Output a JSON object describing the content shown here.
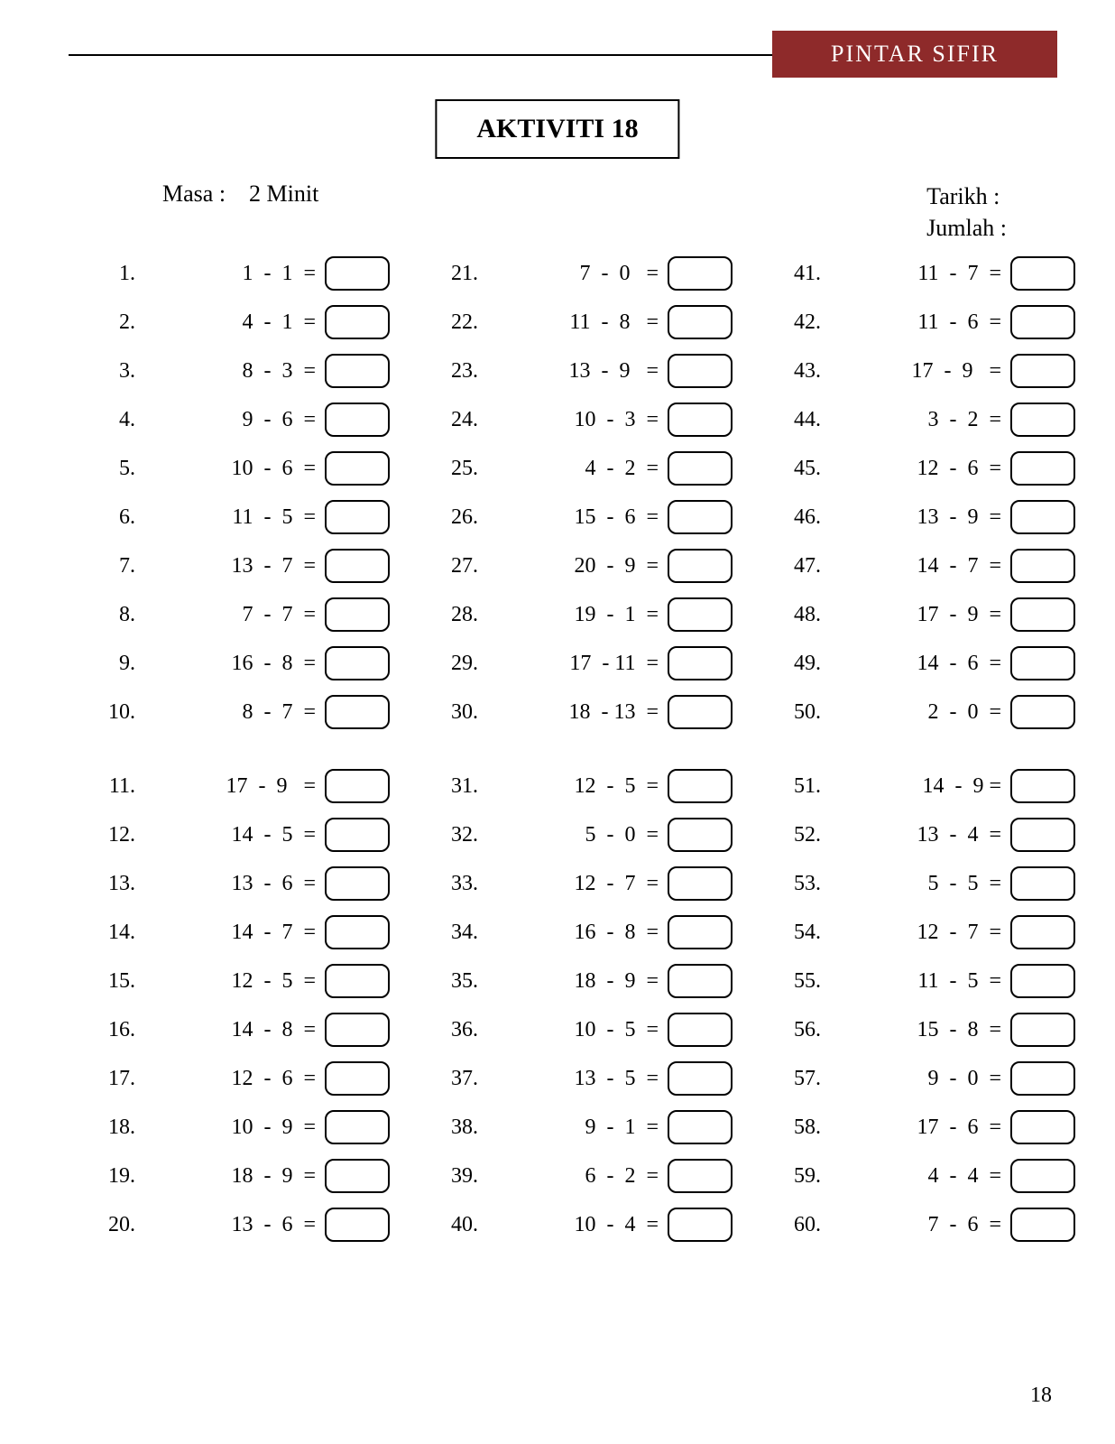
{
  "brand": "PINTAR  SIFIR",
  "title": "AKTIVITI 18",
  "meta": {
    "masa_label": "Masa  :",
    "masa_value": "2 Minit",
    "tarikh_label": "Tarikh  :",
    "jumlah_label": "Jumlah  :"
  },
  "page_number": "18",
  "split_after_index": 10,
  "columns": [
    [
      {
        "n": "1.",
        "e": "1  -  1  ="
      },
      {
        "n": "2.",
        "e": "4  -  1  ="
      },
      {
        "n": "3.",
        "e": "8  -  3  ="
      },
      {
        "n": "4.",
        "e": "9  -  6  ="
      },
      {
        "n": "5.",
        "e": "10  -  6  ="
      },
      {
        "n": "6.",
        "e": "11  -  5  ="
      },
      {
        "n": "7.",
        "e": "13  -  7  ="
      },
      {
        "n": "8.",
        "e": "7  -  7  ="
      },
      {
        "n": "9.",
        "e": "16  -  8  ="
      },
      {
        "n": "10.",
        "e": "8  -  7  ="
      },
      {
        "n": "11.",
        "e": "17  -  9   ="
      },
      {
        "n": "12.",
        "e": "14  -  5  ="
      },
      {
        "n": "13.",
        "e": "13  -  6  ="
      },
      {
        "n": "14.",
        "e": "14  -  7  ="
      },
      {
        "n": "15.",
        "e": "12  -  5  ="
      },
      {
        "n": "16.",
        "e": "14  -  8  ="
      },
      {
        "n": "17.",
        "e": "12  -  6  ="
      },
      {
        "n": "18.",
        "e": "10  -  9  ="
      },
      {
        "n": "19.",
        "e": "18  -  9  ="
      },
      {
        "n": "20.",
        "e": "13  -  6  ="
      }
    ],
    [
      {
        "n": "21.",
        "e": "7  -  0   ="
      },
      {
        "n": "22.",
        "e": "11  -  8   ="
      },
      {
        "n": "23.",
        "e": "13  -  9   ="
      },
      {
        "n": "24.",
        "e": "10  -  3  ="
      },
      {
        "n": "25.",
        "e": "4  -  2  ="
      },
      {
        "n": "26.",
        "e": "15  -  6  ="
      },
      {
        "n": "27.",
        "e": "20  -  9  ="
      },
      {
        "n": "28.",
        "e": "19  -  1  ="
      },
      {
        "n": "29.",
        "e": "17  - 11  ="
      },
      {
        "n": "30.",
        "e": "18  - 13  ="
      },
      {
        "n": "31.",
        "e": "12  -  5  ="
      },
      {
        "n": "32.",
        "e": "5  -  0  ="
      },
      {
        "n": "33.",
        "e": "12  -  7  ="
      },
      {
        "n": "34.",
        "e": "16  -  8  ="
      },
      {
        "n": "35.",
        "e": "18  -  9  ="
      },
      {
        "n": "36.",
        "e": "10  -  5  ="
      },
      {
        "n": "37.",
        "e": "13  -  5  ="
      },
      {
        "n": "38.",
        "e": "9  -  1  ="
      },
      {
        "n": "39.",
        "e": "6  -  2  ="
      },
      {
        "n": "40.",
        "e": "10  -  4  ="
      }
    ],
    [
      {
        "n": "41.",
        "e": "11  -  7  ="
      },
      {
        "n": "42.",
        "e": "11  -  6  ="
      },
      {
        "n": "43.",
        "e": "17  -  9   ="
      },
      {
        "n": "44.",
        "e": "3  -  2  ="
      },
      {
        "n": "45.",
        "e": "12  -  6  ="
      },
      {
        "n": "46.",
        "e": "13  -  9  ="
      },
      {
        "n": "47.",
        "e": "14  -  7  ="
      },
      {
        "n": "48.",
        "e": "17  -  9  ="
      },
      {
        "n": "49.",
        "e": "14  -  6  ="
      },
      {
        "n": "50.",
        "e": "2  -  0  ="
      },
      {
        "n": "51.",
        "e": "14  -  9 ="
      },
      {
        "n": "52.",
        "e": "13  -  4  ="
      },
      {
        "n": "53.",
        "e": "5  -  5  ="
      },
      {
        "n": "54.",
        "e": "12  -  7  ="
      },
      {
        "n": "55.",
        "e": "11  -  5  ="
      },
      {
        "n": "56.",
        "e": "15  -  8  ="
      },
      {
        "n": "57.",
        "e": "9  -  0  ="
      },
      {
        "n": "58.",
        "e": "17  -  6  ="
      },
      {
        "n": "59.",
        "e": "4  -  4  ="
      },
      {
        "n": "60.",
        "e": "7  -  6  ="
      }
    ]
  ]
}
